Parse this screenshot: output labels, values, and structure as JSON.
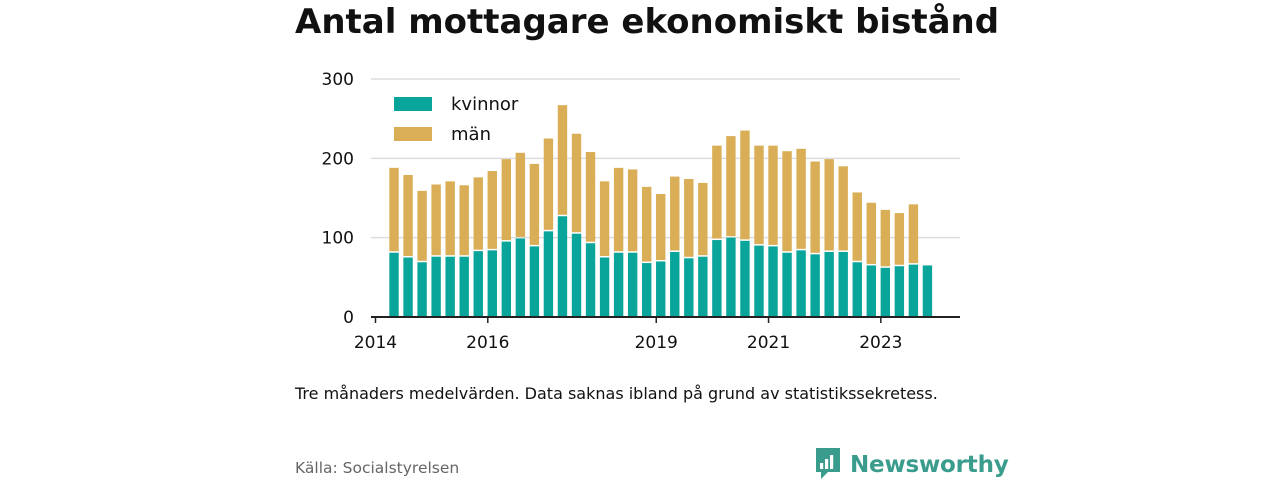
{
  "title": "Antal mottagare ekonomiskt bistånd",
  "note": "Tre månaders medelvärden. Data saknas ibland på grund av statistikssekretess.",
  "source": "Källa: Socialstyrelsen",
  "brand": {
    "name": "Newsworthy",
    "icon": "newsworthy-logo-icon",
    "color": "#3a9c8c"
  },
  "colors": {
    "kvinnor": "#0aa59a",
    "man": "#d9ae57",
    "grid": "#dddddd",
    "axis": "#222222"
  },
  "chart_data": {
    "type": "bar",
    "stacked": true,
    "ylim": [
      0,
      300
    ],
    "yticks": [
      0,
      100,
      200,
      300
    ],
    "xticks": [
      {
        "label": "2014",
        "x": 2014.0
      },
      {
        "label": "2016",
        "x": 2016.0
      },
      {
        "label": "2019",
        "x": 2019.0
      },
      {
        "label": "2021",
        "x": 2021.0
      },
      {
        "label": "2023",
        "x": 2023.0
      }
    ],
    "xlim": [
      2013.92,
      2024.41
    ],
    "grid": true,
    "legend_position": "top-left",
    "x": [
      2014.33,
      2014.58,
      2014.83,
      2015.08,
      2015.33,
      2015.58,
      2015.83,
      2016.08,
      2016.33,
      2016.58,
      2016.83,
      2017.08,
      2017.33,
      2017.58,
      2017.83,
      2018.08,
      2018.33,
      2018.58,
      2018.83,
      2019.08,
      2019.33,
      2019.58,
      2019.83,
      2020.08,
      2020.33,
      2020.58,
      2020.83,
      2021.08,
      2021.33,
      2021.58,
      2021.83,
      2022.08,
      2022.33,
      2022.58,
      2022.83,
      2023.08,
      2023.33,
      2023.58,
      2023.83
    ],
    "series": [
      {
        "name": "kvinnor",
        "values": [
          81,
          75,
          69,
          76,
          76,
          76,
          83,
          84,
          95,
          99,
          89,
          108,
          127,
          105,
          93,
          75,
          81,
          81,
          68,
          70,
          82,
          74,
          76,
          97,
          100,
          96,
          90,
          89,
          81,
          84,
          79,
          82,
          82,
          69,
          65,
          62,
          64,
          66,
          65
        ]
      },
      {
        "name": "män",
        "values": [
          107,
          104,
          90,
          91,
          95,
          90,
          93,
          100,
          104,
          108,
          104,
          117,
          140,
          126,
          115,
          96,
          107,
          105,
          96,
          85,
          95,
          100,
          93,
          119,
          128,
          139,
          126,
          127,
          128,
          128,
          117,
          117,
          108,
          88,
          79,
          73,
          67,
          76,
          0
        ]
      }
    ]
  }
}
